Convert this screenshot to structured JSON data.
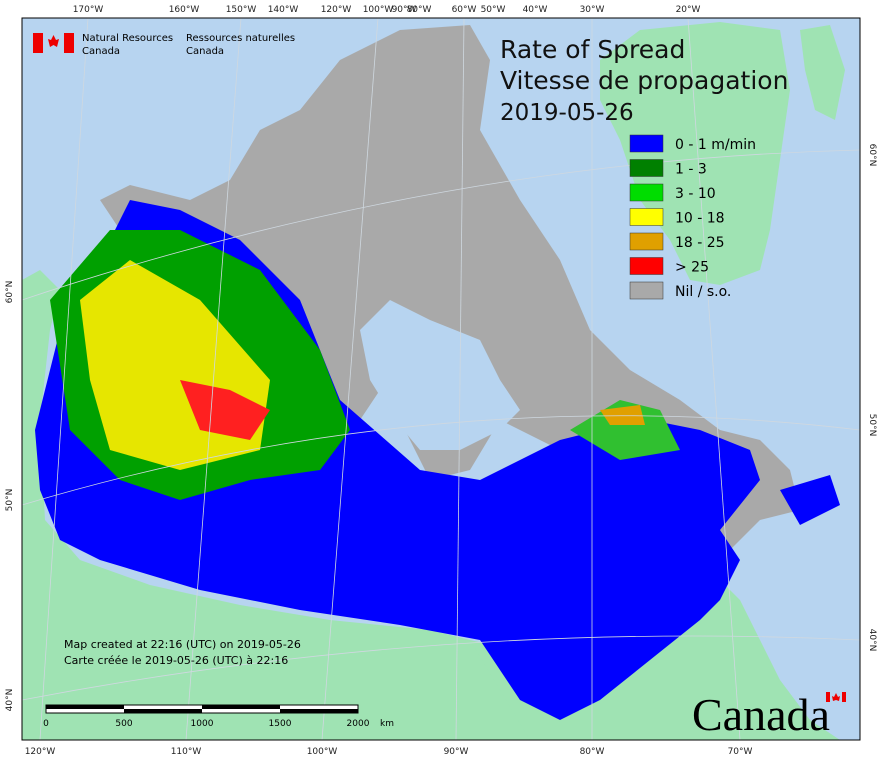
{
  "header": {
    "agency_en": [
      "Natural Resources",
      "Canada"
    ],
    "agency_fr": [
      "Ressources naturelles",
      "Canada"
    ]
  },
  "title": {
    "lines": [
      "Rate of Spread",
      "Vitesse de propagation"
    ],
    "date": "2019-05-26"
  },
  "legend": {
    "items": [
      {
        "label": "0 - 1 m/min",
        "color": "#0000ff"
      },
      {
        "label": "1 - 3",
        "color": "#008000"
      },
      {
        "label": "3 - 10",
        "color": "#00dd00"
      },
      {
        "label": "10 - 18",
        "color": "#ffff00"
      },
      {
        "label": "18 - 25",
        "color": "#e0a000"
      },
      {
        "label": "> 25",
        "color": "#ff0000"
      },
      {
        "label": "Nil / s.o.",
        "color": "#a9a9a9"
      }
    ]
  },
  "graticule": {
    "top": [
      "170°W",
      "160°W",
      "150°W",
      "140°W",
      "120°W",
      "100°W",
      "90°W",
      "80°W",
      "60°W",
      "50°W",
      "40°W",
      "30°W",
      "20°W"
    ],
    "bottom": [
      "120°W",
      "110°W",
      "100°W",
      "90°W",
      "80°W",
      "70°W"
    ],
    "left": [
      "60°N",
      "50°N",
      "40°N"
    ],
    "right": [
      "60°N",
      "50°N",
      "40°N"
    ]
  },
  "notes": [
    "Map created at 22:16 (UTC) on 2019-05-26",
    "Carte créée le 2019-05-26 (UTC) à 22:16"
  ],
  "scale_bar": {
    "labels": [
      "0",
      "500",
      "1000",
      "1500",
      "2000"
    ],
    "unit": "km"
  },
  "wordmark": "Canada"
}
